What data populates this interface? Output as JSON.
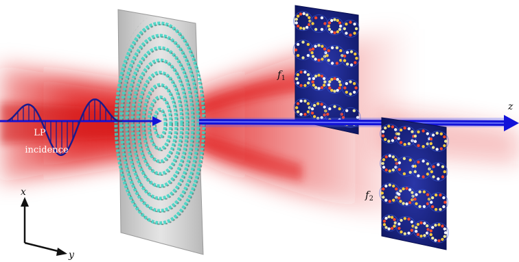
{
  "diagram": {
    "incidence_label_line1": "LP",
    "incidence_label_line2": "incidence",
    "axis_x": "x",
    "axis_y": "y",
    "axis_z": "z",
    "panel1_label": "f",
    "panel1_sub": "1",
    "panel2_label": "f",
    "panel2_sub": "2",
    "panel_grid": {
      "rows": 4,
      "cols": 4
    },
    "colors": {
      "beam_red": "#e01818",
      "beam_blue": "#1010d0",
      "wave_navy": "#1a1a8c",
      "metasurface_cyan": "#3ad6c4",
      "substrate_gray": "#b8b8b8",
      "panel_navy": "#101a70"
    }
  }
}
